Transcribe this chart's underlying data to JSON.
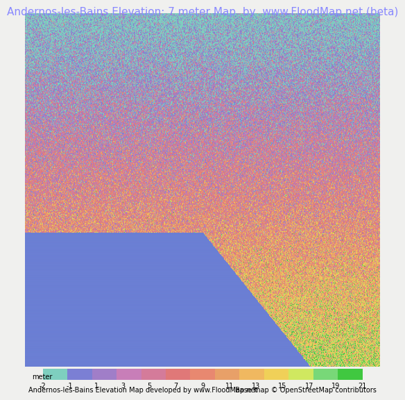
{
  "title": "Andernos-les-Bains Elevation: 7 meter Map  by  www.FloodMap.net (beta)",
  "title_color": "#8888ff",
  "title_fontsize": 11,
  "background_color": "#f0f0ee",
  "map_image_placeholder": true,
  "colorbar_colors": [
    "#7ecfbf",
    "#7b7fd4",
    "#a07ec8",
    "#c87eb8",
    "#d47b9a",
    "#e07878",
    "#e88870",
    "#e8a068",
    "#f0b860",
    "#f0d058",
    "#d0e860",
    "#78d878"
  ],
  "colorbar_ticks": [
    -2,
    -1,
    1,
    3,
    5,
    7,
    9,
    11,
    13,
    15,
    17,
    19,
    21
  ],
  "colorbar_label": "meter",
  "footer_left": "Andernos-les-Bains Elevation Map developed by www.FloodMap.net",
  "footer_right": "Base map © OpenStreetMap contributors",
  "footer_fontsize": 7,
  "map_colors": {
    "water_blue": "#6b7fd4",
    "low_purple": "#b07ec8",
    "mid_pink": "#d47b90",
    "mid_red": "#e07878",
    "high_orange": "#e8a060",
    "high_yellow": "#f0c858",
    "highest_green": "#78d870",
    "bright_green": "#40e040",
    "hot_red": "#e84040"
  }
}
